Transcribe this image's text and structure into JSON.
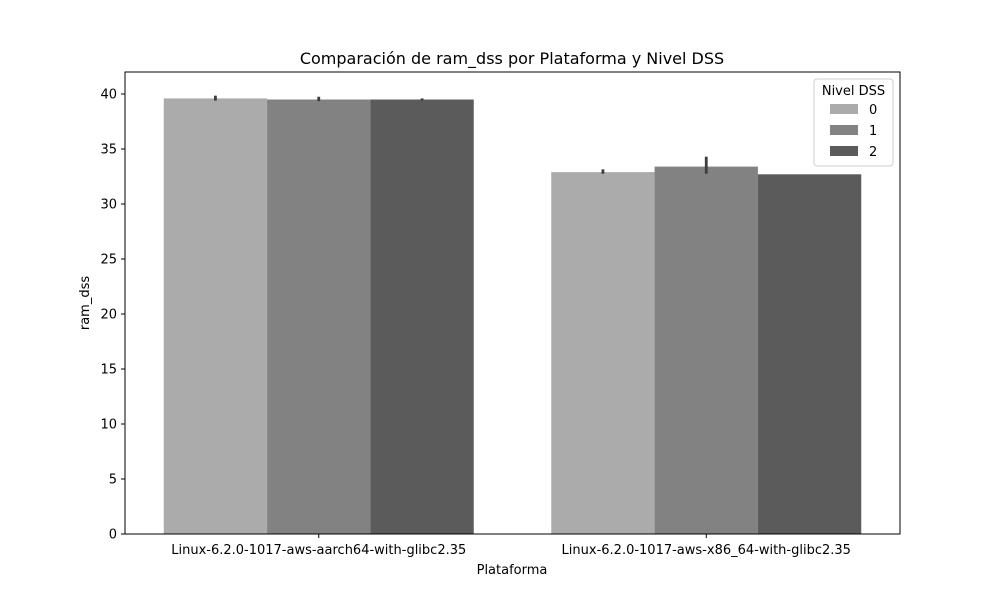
{
  "chart_data": {
    "type": "bar",
    "title": "Comparación de ram_dss por Plataforma y Nivel DSS",
    "xlabel": "Plataforma",
    "ylabel": "ram_dss",
    "ylim": [
      0,
      42
    ],
    "yticks": [
      0,
      5,
      10,
      15,
      20,
      25,
      30,
      35,
      40
    ],
    "categories": [
      "Linux-6.2.0-1017-aws-aarch64-with-glibc2.35",
      "Linux-6.2.0-1017-aws-x86_64-with-glibc2.35"
    ],
    "series": [
      {
        "name": "0",
        "color": "#ababab",
        "values": [
          39.6,
          32.9
        ],
        "err_low": [
          39.4,
          32.75
        ],
        "err_high": [
          39.85,
          33.15
        ]
      },
      {
        "name": "1",
        "color": "#828282",
        "values": [
          39.5,
          33.4
        ],
        "err_low": [
          39.35,
          32.75
        ],
        "err_high": [
          39.75,
          34.3
        ]
      },
      {
        "name": "2",
        "color": "#5b5b5b",
        "values": [
          39.5,
          32.7
        ],
        "err_low": [
          39.4,
          32.7
        ],
        "err_high": [
          39.6,
          32.7
        ]
      }
    ],
    "grid": false,
    "legend": {
      "title": "Nivel DSS",
      "placement": "top-right"
    }
  }
}
